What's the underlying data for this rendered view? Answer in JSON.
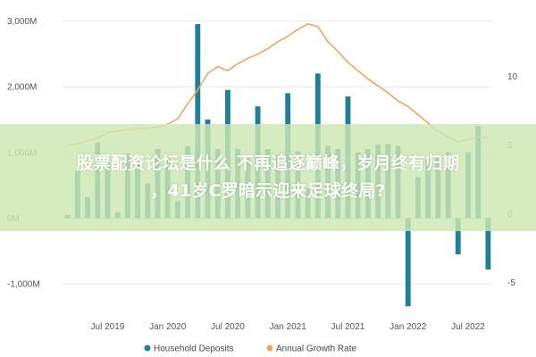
{
  "chart_data": {
    "type": "bar+line",
    "bar_color": "#1f7f9c",
    "bar_color_light": "#4a9e3f",
    "line_color": "#f4a261",
    "left_axis": {
      "ylim": [
        -1500,
        3100
      ],
      "ticks": [
        -1000,
        0,
        1000,
        2000,
        3000
      ],
      "tick_labels": [
        "-1,000M",
        "0M",
        "1,000M",
        "2,000M",
        "3,000M"
      ]
    },
    "right_axis": {
      "ylim": [
        -7.5,
        14.5
      ],
      "ticks": [
        -5,
        0,
        5,
        10
      ],
      "tick_labels": [
        "-5",
        "0",
        "5",
        "10"
      ]
    },
    "x_tick_labels": [
      "Jul 2019",
      "Jan 2020",
      "Jul 2020",
      "Jan 2021",
      "Jul 2021",
      "Jan 2022",
      "Jul 2022"
    ],
    "months": [
      "2019-03",
      "2019-04",
      "2019-05",
      "2019-06",
      "2019-07",
      "2019-08",
      "2019-09",
      "2019-10",
      "2019-11",
      "2019-12",
      "2020-01",
      "2020-02",
      "2020-03",
      "2020-04",
      "2020-05",
      "2020-06",
      "2020-07",
      "2020-08",
      "2020-09",
      "2020-10",
      "2020-11",
      "2020-12",
      "2021-01",
      "2021-02",
      "2021-03",
      "2021-04",
      "2021-05",
      "2021-06",
      "2021-07",
      "2021-08",
      "2021-09",
      "2021-10",
      "2021-11",
      "2021-12",
      "2022-01",
      "2022-02",
      "2022-03",
      "2022-04",
      "2022-05",
      "2022-06",
      "2022-07",
      "2022-08",
      "2022-09"
    ],
    "series": [
      {
        "name": "Household Deposits",
        "kind": "bar",
        "axis": "left",
        "values": [
          50,
          720,
          320,
          1150,
          850,
          90,
          980,
          850,
          530,
          1050,
          900,
          260,
          1100,
          2950,
          1500,
          1050,
          1950,
          1050,
          920,
          1700,
          1050,
          960,
          1900,
          1020,
          450,
          2200,
          1100,
          1050,
          1850,
          1000,
          1050,
          1120,
          1130,
          1100,
          -1340,
          620,
          900,
          950,
          1000,
          -550,
          1000,
          1400,
          -780
        ]
      },
      {
        "name": "Annual Growth Rate",
        "kind": "line",
        "axis": "right",
        "values": [
          5.0,
          5.1,
          5.3,
          5.5,
          5.9,
          6.0,
          6.1,
          6.2,
          6.2,
          6.3,
          6.5,
          6.9,
          8.0,
          9.0,
          10.2,
          10.7,
          10.4,
          10.9,
          11.3,
          11.6,
          12.0,
          12.5,
          12.9,
          13.4,
          13.8,
          13.6,
          12.5,
          11.8,
          11.0,
          10.4,
          9.8,
          9.3,
          8.8,
          8.2,
          7.8,
          7.2,
          6.6,
          6.0,
          5.6,
          5.2,
          5.4,
          5.6,
          5.5
        ]
      }
    ],
    "legend_position": "bottom-center"
  },
  "overlay": {
    "line1": "股票配资论坛是什么 不再追逐巅峰，岁月终有归期",
    "line2": "，41岁C罗暗示迎来足球终局?"
  }
}
